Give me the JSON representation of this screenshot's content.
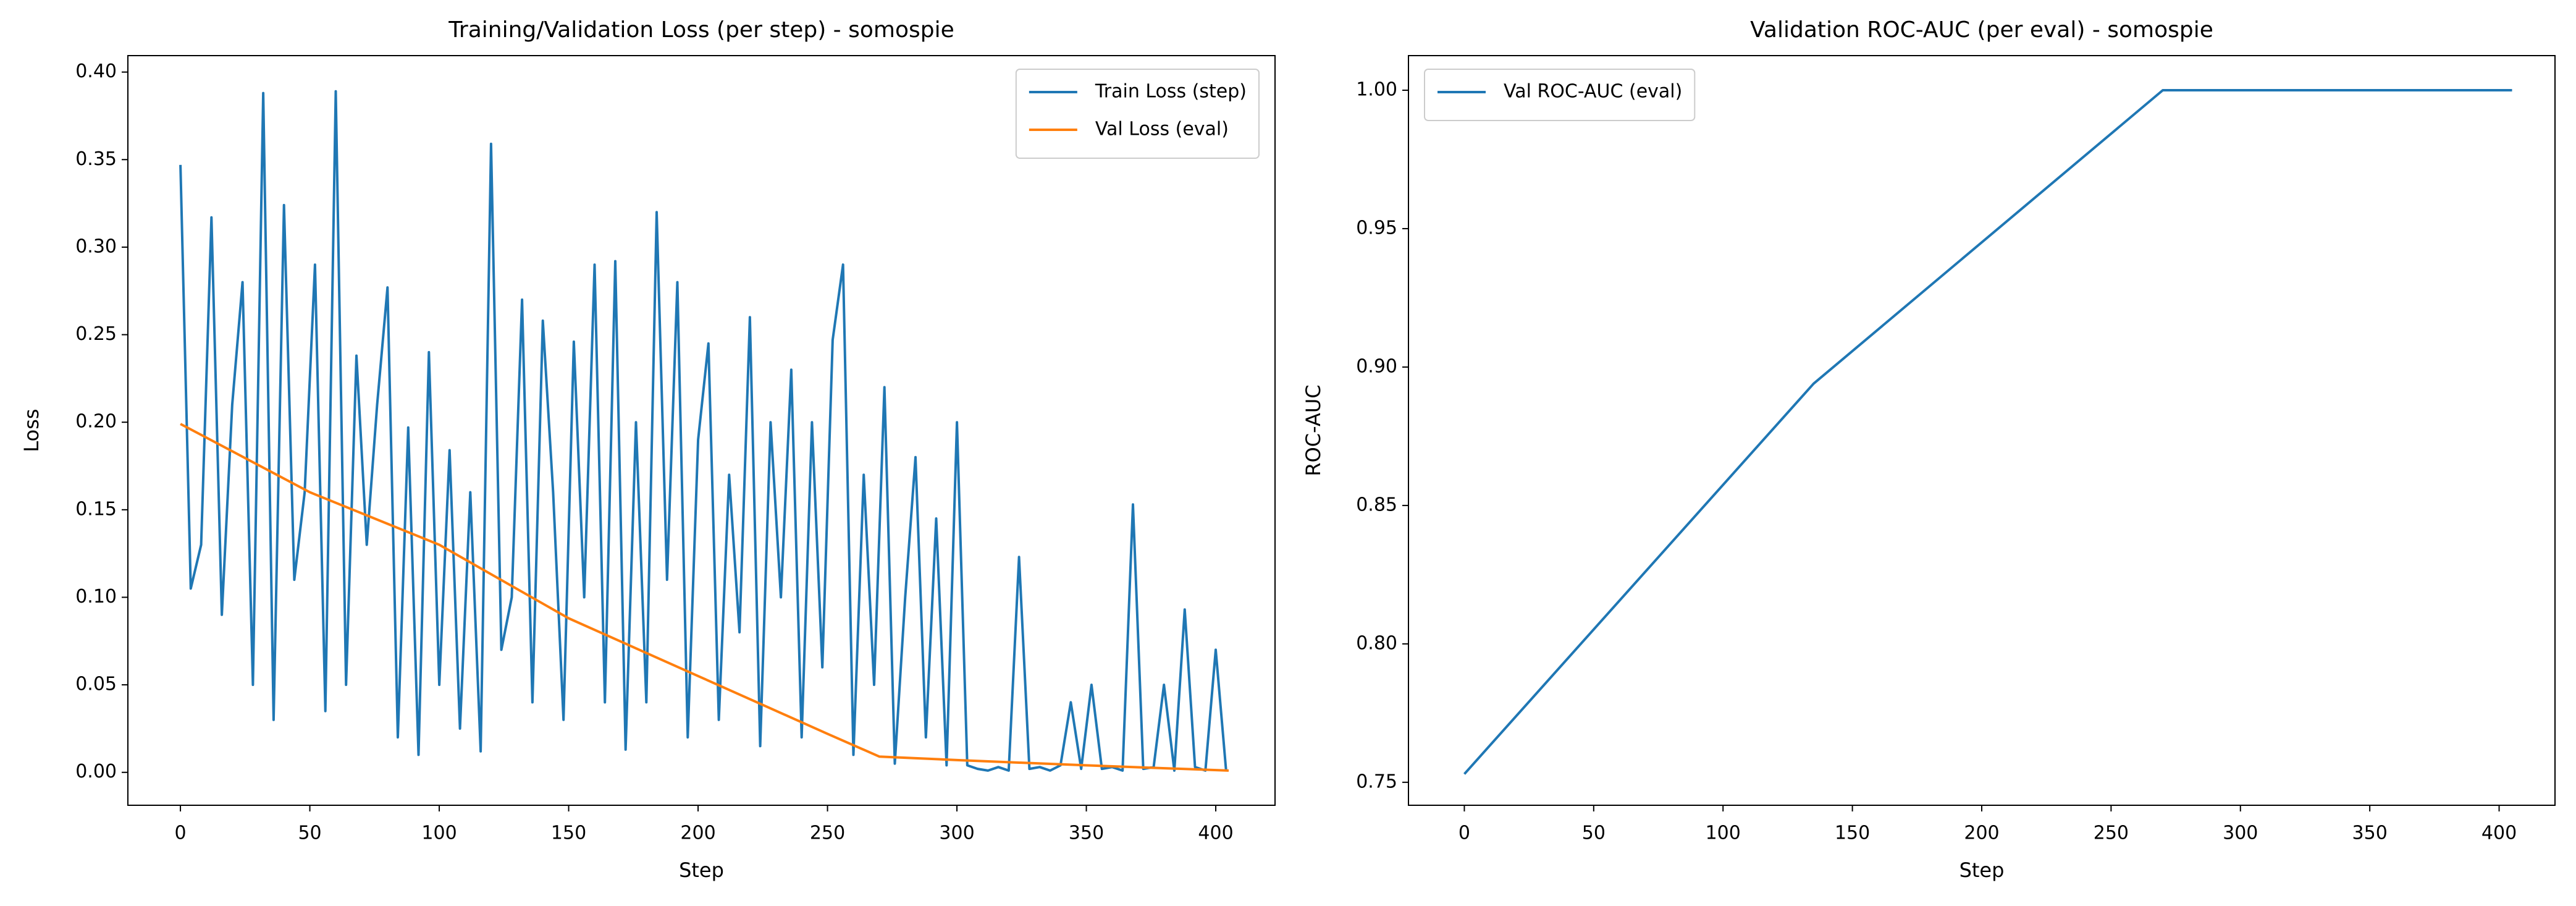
{
  "chart_data": [
    {
      "type": "line",
      "title": "Training/Validation Loss (per step) - somospie",
      "x_label": "Step",
      "y_label": "Loss",
      "xlim": [
        -20.3,
        422.9
      ],
      "ylim": [
        -0.0188,
        0.4094
      ],
      "xticks": [
        0,
        50,
        100,
        150,
        200,
        250,
        300,
        350,
        400
      ],
      "yticks": [
        {
          "value": 0,
          "label": "0.00"
        },
        {
          "value": 0.05,
          "label": "0.05"
        },
        {
          "value": 0.1,
          "label": "0.10"
        },
        {
          "value": 0.15,
          "label": "0.15"
        },
        {
          "value": 0.2,
          "label": "0.20"
        },
        {
          "value": 0.25,
          "label": "0.25"
        },
        {
          "value": 0.3,
          "label": "0.30"
        },
        {
          "value": 0.35,
          "label": "0.35"
        },
        {
          "value": 0.4,
          "label": "0.40"
        }
      ],
      "legend": "upper right",
      "series": [
        {
          "name": "Train Loss (step)",
          "color": "#1f77b4",
          "x": [
            0,
            4,
            8,
            12,
            16,
            20,
            24,
            28,
            32,
            36,
            40,
            44,
            48,
            52,
            56,
            60,
            64,
            68,
            72,
            76,
            80,
            84,
            88,
            92,
            96,
            100,
            104,
            108,
            112,
            116,
            120,
            124,
            128,
            132,
            136,
            140,
            144,
            148,
            152,
            156,
            160,
            164,
            168,
            172,
            176,
            180,
            184,
            188,
            192,
            196,
            200,
            204,
            208,
            212,
            216,
            220,
            224,
            228,
            232,
            236,
            240,
            244,
            248,
            252,
            256,
            260,
            264,
            268,
            272,
            276,
            280,
            284,
            288,
            292,
            296,
            300,
            304,
            308,
            312,
            316,
            320,
            324,
            328,
            332,
            336,
            340,
            344,
            348,
            352,
            356,
            360,
            364,
            368,
            372,
            376,
            380,
            384,
            388,
            392,
            396,
            400,
            404
          ],
          "values": [
            0.347,
            0.105,
            0.13,
            0.317,
            0.09,
            0.21,
            0.28,
            0.05,
            0.388,
            0.03,
            0.324,
            0.11,
            0.16,
            0.29,
            0.035,
            0.389,
            0.05,
            0.238,
            0.13,
            0.21,
            0.277,
            0.02,
            0.197,
            0.01,
            0.24,
            0.05,
            0.184,
            0.025,
            0.16,
            0.012,
            0.359,
            0.07,
            0.1,
            0.27,
            0.04,
            0.258,
            0.16,
            0.03,
            0.246,
            0.1,
            0.29,
            0.04,
            0.292,
            0.013,
            0.2,
            0.04,
            0.32,
            0.11,
            0.28,
            0.02,
            0.19,
            0.245,
            0.03,
            0.17,
            0.08,
            0.26,
            0.015,
            0.2,
            0.1,
            0.23,
            0.02,
            0.2,
            0.06,
            0.247,
            0.29,
            0.01,
            0.17,
            0.05,
            0.22,
            0.005,
            0.1,
            0.18,
            0.02,
            0.145,
            0.004,
            0.2,
            0.004,
            0.002,
            0.001,
            0.003,
            0.001,
            0.123,
            0.002,
            0.003,
            0.001,
            0.004,
            0.04,
            0.002,
            0.05,
            0.002,
            0.003,
            0.001,
            0.153,
            0.002,
            0.003,
            0.05,
            0.001,
            0.093,
            0.003,
            0.001,
            0.07,
            0.001
          ]
        },
        {
          "name": "Val Loss (eval)",
          "color": "#ff7f0e",
          "x": [
            0,
            50,
            100,
            150,
            200,
            250,
            270,
            300,
            350,
            405
          ],
          "values": [
            0.199,
            0.16,
            0.13,
            0.088,
            0.055,
            0.022,
            0.009,
            0.007,
            0.004,
            0.001
          ]
        }
      ]
    },
    {
      "type": "line",
      "title": "Validation ROC-AUC (per eval) - somospie",
      "x_label": "Step",
      "y_label": "ROC-AUC",
      "xlim": [
        -21.6,
        421.6
      ],
      "ylim": [
        0.7417,
        1.0125
      ],
      "xticks": [
        0,
        50,
        100,
        150,
        200,
        250,
        300,
        350,
        400
      ],
      "yticks": [
        {
          "value": 0.75,
          "label": "0.75"
        },
        {
          "value": 0.8,
          "label": "0.80"
        },
        {
          "value": 0.85,
          "label": "0.85"
        },
        {
          "value": 0.9,
          "label": "0.90"
        },
        {
          "value": 0.95,
          "label": "0.95"
        },
        {
          "value": 1,
          "label": "1.00"
        }
      ],
      "legend": "upper left",
      "series": [
        {
          "name": "Val ROC-AUC (eval)",
          "color": "#1f77b4",
          "x": [
            0,
            135,
            270,
            405
          ],
          "values": [
            0.753,
            0.894,
            1.0,
            1.0
          ]
        }
      ]
    }
  ]
}
